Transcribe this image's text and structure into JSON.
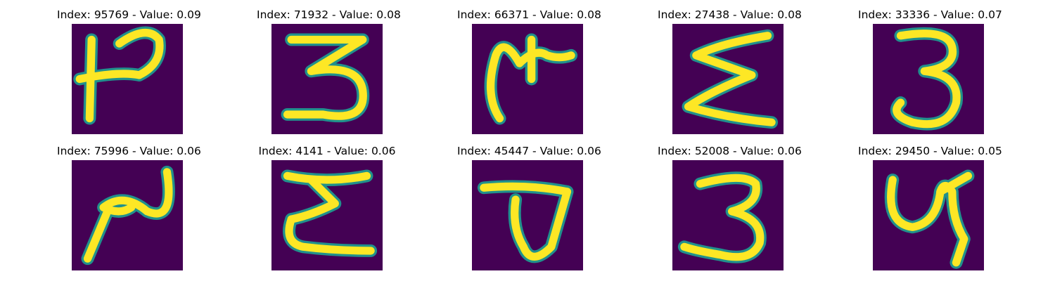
{
  "panels": [
    {
      "title": "Index: 95769 - Value: 0.09",
      "glyph": "h-shaped-character"
    },
    {
      "title": "Index: 71932 - Value: 0.08",
      "glyph": "three-shaped-character"
    },
    {
      "title": "Index: 66371 - Value: 0.08",
      "glyph": "hooked-character"
    },
    {
      "title": "Index: 27438 - Value: 0.08",
      "glyph": "epsilon-shaped-character"
    },
    {
      "title": "Index: 33336 - Value: 0.07",
      "glyph": "three-character"
    },
    {
      "title": "Index: 75996 - Value: 0.06",
      "glyph": "two-shaped-character"
    },
    {
      "title": "Index: 4141 - Value: 0.06",
      "glyph": "sigma-shaped-character"
    },
    {
      "title": "Index: 45447 - Value: 0.06",
      "glyph": "loop-character"
    },
    {
      "title": "Index: 52008 - Value: 0.06",
      "glyph": "three-character"
    },
    {
      "title": "Index: 29450 - Value: 0.05",
      "glyph": "y-shaped-character"
    }
  ],
  "colors": {
    "background": "#440154",
    "stroke_edge": "#21918c",
    "stroke_core": "#fde725"
  }
}
